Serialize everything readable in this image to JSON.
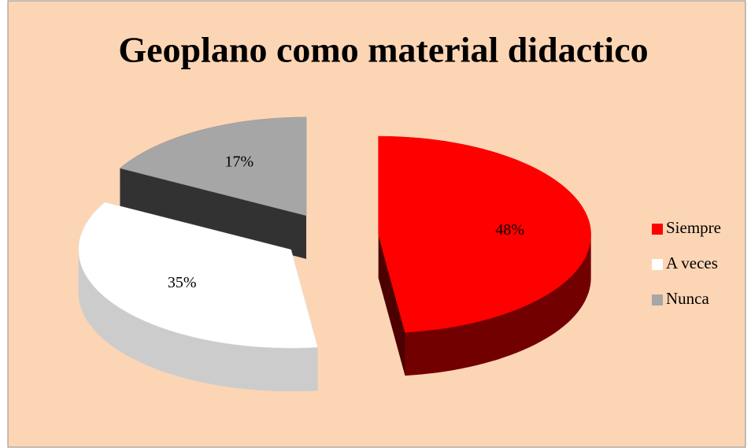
{
  "chart_data": {
    "type": "pie3d",
    "title": "Geoplano como material didactico",
    "categories": [
      "Siempre",
      "A veces",
      "Nunca"
    ],
    "values": [
      48,
      35,
      17
    ],
    "value_labels": [
      "48%",
      "35%",
      "17%"
    ],
    "colors": [
      "#ff0000",
      "#ffffff",
      "#a6a6a6"
    ],
    "legend": "right"
  }
}
